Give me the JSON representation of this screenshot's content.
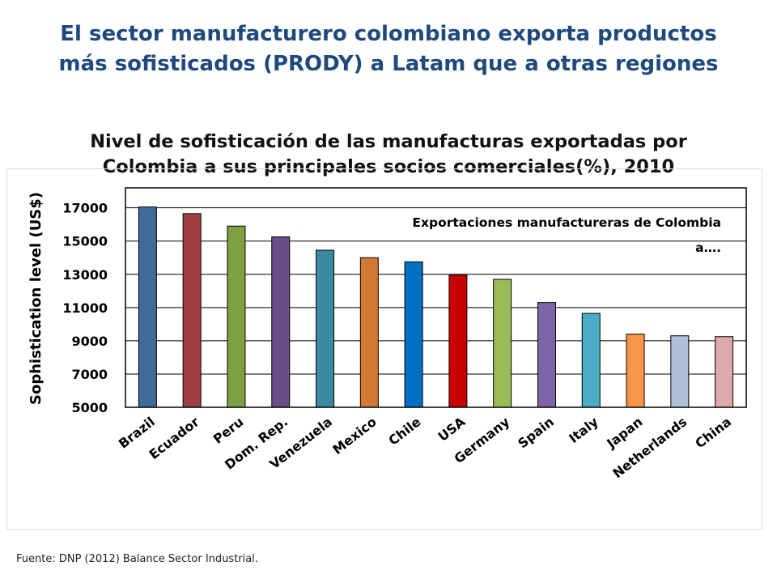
{
  "slide": {
    "title": "El sector manufacturero colombiano exporta productos más sofisticados (PRODY) a Latam que a otras regiones",
    "source": "Fuente: DNP (2012) Balance Sector Industrial."
  },
  "chart_data": {
    "type": "bar",
    "title": "Nivel de sofisticación de las manufacturas exportadas por Colombia a sus principales socios comerciales(%), 2010",
    "annotation": "Exportaciones manufactureras de Colombia a….",
    "xlabel": "",
    "ylabel": "Sophistication level (US$)",
    "ylim": [
      5000,
      18200
    ],
    "yticks": [
      5000,
      7000,
      9000,
      11000,
      13000,
      15000,
      17000
    ],
    "categories": [
      "Brazil",
      "Ecuador",
      "Peru",
      "Dom. Rep.",
      "Venezuela",
      "Mexico",
      "Chile",
      "USA",
      "Germany",
      "Spain",
      "Italy",
      "Japan",
      "Netherlands",
      "China"
    ],
    "values": [
      17050,
      16650,
      15900,
      15250,
      14450,
      14000,
      13750,
      12950,
      12700,
      11300,
      10650,
      9400,
      9300,
      9250
    ],
    "colors": [
      "#3E6B9A",
      "#A04040",
      "#7FA040",
      "#6A4E8A",
      "#3A8AA2",
      "#D07A35",
      "#0070C0",
      "#C80000",
      "#9BBB59",
      "#7F65A8",
      "#4BACC6",
      "#F79646",
      "#AFC0DA",
      "#DDA9AA"
    ],
    "grid": true,
    "legend": "none"
  }
}
